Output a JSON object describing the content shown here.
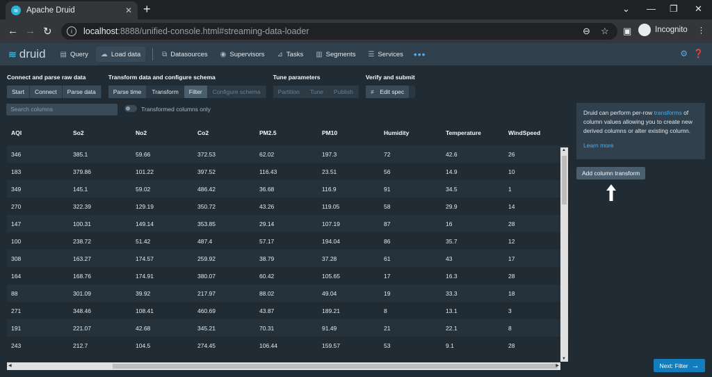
{
  "browser": {
    "tab_title": "Apache Druid",
    "url_host": "localhost",
    "url_path": ":8888/unified-console.html#streaming-data-loader",
    "profile_label": "Incognito"
  },
  "nav": {
    "logo_text": "druid",
    "items": [
      {
        "label": "Query",
        "icon": "query-icon"
      },
      {
        "label": "Load data",
        "icon": "cloud-upload-icon"
      },
      {
        "label": "Datasources",
        "icon": "datasources-icon"
      },
      {
        "label": "Supervisors",
        "icon": "eye-icon"
      },
      {
        "label": "Tasks",
        "icon": "tasks-icon"
      },
      {
        "label": "Segments",
        "icon": "segments-icon"
      },
      {
        "label": "Services",
        "icon": "database-icon"
      }
    ],
    "more": "•••"
  },
  "steps": {
    "groups": [
      {
        "title": "Connect and parse raw data",
        "buttons": [
          "Start",
          "Connect",
          "Parse data"
        ]
      },
      {
        "title": "Transform data and configure schema",
        "buttons": [
          "Parse time",
          "Transform",
          "Filter",
          "Configure schema"
        ]
      },
      {
        "title": "Tune parameters",
        "buttons": [
          "Partition",
          "Tune",
          "Publish"
        ]
      },
      {
        "title": "Verify and submit",
        "buttons": [
          "Edit spec"
        ]
      }
    ]
  },
  "filter": {
    "search_placeholder": "Search columns",
    "toggle_label": "Transformed columns only"
  },
  "table": {
    "columns": [
      "AQI",
      "So2",
      "No2",
      "Co2",
      "PM2.5",
      "PM10",
      "Humidity",
      "Temperature",
      "WindSpeed"
    ],
    "rows": [
      [
        "346",
        "385.1",
        "59.66",
        "372.53",
        "62.02",
        "197.3",
        "72",
        "42.6",
        "26"
      ],
      [
        "183",
        "379.86",
        "101.22",
        "397.52",
        "116.43",
        "23.51",
        "56",
        "14.9",
        "10"
      ],
      [
        "349",
        "145.1",
        "59.02",
        "486.42",
        "36.68",
        "116.9",
        "91",
        "34.5",
        "1"
      ],
      [
        "270",
        "322.39",
        "129.19",
        "350.72",
        "43.26",
        "119.05",
        "58",
        "29.9",
        "14"
      ],
      [
        "147",
        "100.31",
        "149.14",
        "353.85",
        "29.14",
        "107.19",
        "87",
        "16",
        "28"
      ],
      [
        "100",
        "238.72",
        "51.42",
        "487.4",
        "57.17",
        "194.04",
        "86",
        "35.7",
        "12"
      ],
      [
        "308",
        "163.27",
        "174.57",
        "259.92",
        "38.79",
        "37.28",
        "61",
        "43",
        "17"
      ],
      [
        "164",
        "168.76",
        "174.91",
        "380.07",
        "60.42",
        "105.65",
        "17",
        "16.3",
        "28"
      ],
      [
        "88",
        "301.09",
        "39.92",
        "217.97",
        "88.02",
        "49.04",
        "19",
        "33.3",
        "18"
      ],
      [
        "271",
        "348.46",
        "108.41",
        "460.69",
        "43.87",
        "189.21",
        "8",
        "13.1",
        "3"
      ],
      [
        "191",
        "221.07",
        "42.68",
        "345.21",
        "70.31",
        "91.49",
        "21",
        "22.1",
        "8"
      ],
      [
        "243",
        "212.7",
        "104.5",
        "274.45",
        "106.44",
        "159.57",
        "53",
        "9.1",
        "28"
      ]
    ]
  },
  "side_panel": {
    "text_before": "Druid can perform per-row ",
    "link": "transforms",
    "text_after": " of column values allowing you to create new derived columns or alter existing column.",
    "learn_more": "Learn more",
    "add_button": "Add column transform"
  },
  "footer": {
    "next_button": "Next: Filter"
  }
}
